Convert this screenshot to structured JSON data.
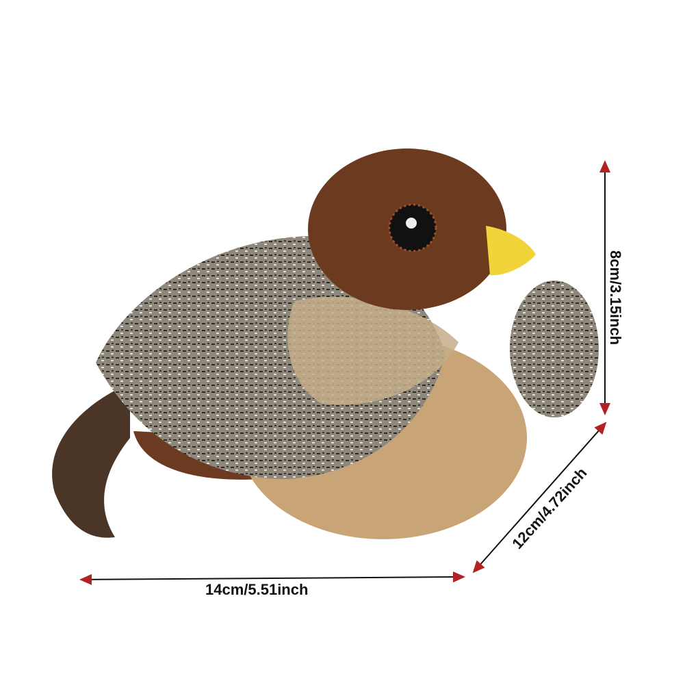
{
  "product": {
    "icon": "plush-bird-toy",
    "colors": {
      "head": "#6b3a1f",
      "body": "#c8a476",
      "beak": "#f2d33a",
      "wing": "#6e6a62",
      "arrow_head": "#b22222",
      "arrow_line": "#111111"
    }
  },
  "dimensions": {
    "width_label": "14cm/5.51inch",
    "depth_label": "12cm/4.72inch",
    "height_label": "8cm/3.15inch"
  }
}
